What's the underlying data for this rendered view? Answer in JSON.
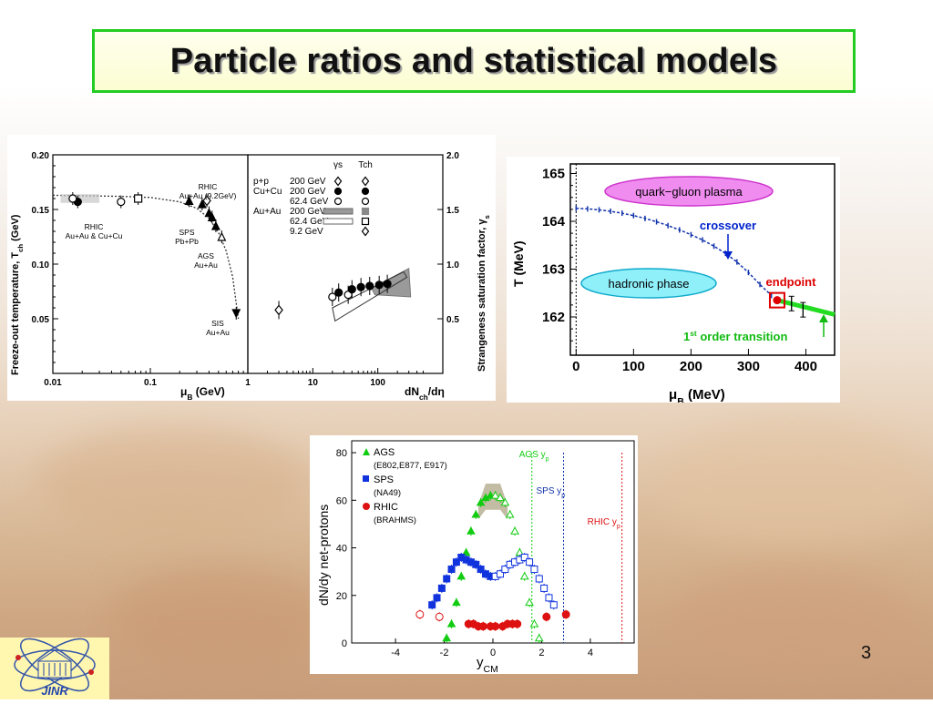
{
  "slide": {
    "title": "Particle ratios and  statistical models",
    "page_number": "3",
    "logo_text": "JINR",
    "colors": {
      "title_border": "#22cc22",
      "title_bg": "#fbfdd2"
    }
  },
  "chart_data": [
    {
      "id": "freeze-out",
      "type": "scatter",
      "left": {
        "ylabel": "Freeze-out temperature, T",
        "ylabel_sub": "ch",
        "ylabel_unit": "(GeV)",
        "xlabel": "μ",
        "xlabel_sub": "B",
        "xlabel_unit": "(GeV)",
        "xscale": "log",
        "xlim": [
          0.01,
          1
        ],
        "ylim": [
          0,
          0.2
        ],
        "xticks": [
          "0.01",
          "0.1",
          "1"
        ],
        "yticks": [
          "0.05",
          "0.10",
          "0.15",
          "0.20"
        ],
        "annotations": [
          {
            "lines": [
              "RHIC",
              "Au+Au & Cu+Cu"
            ]
          },
          {
            "lines": [
              "RHIC",
              "Au+Au (9.2GeV)"
            ]
          },
          {
            "lines": [
              "SPS",
              "Pb+Pb"
            ]
          },
          {
            "lines": [
              "AGS",
              "Au+Au"
            ]
          },
          {
            "lines": [
              "SIS",
              "Au+Au"
            ]
          }
        ],
        "curve": {
          "x": [
            0.01,
            0.05,
            0.1,
            0.2,
            0.3,
            0.4,
            0.5,
            0.6,
            0.7,
            0.8
          ],
          "y": [
            0.163,
            0.162,
            0.161,
            0.157,
            0.151,
            0.142,
            0.129,
            0.112,
            0.088,
            0.05
          ]
        },
        "points": [
          {
            "x": 0.018,
            "y": 0.157,
            "marker": "filled-circle"
          },
          {
            "x": 0.016,
            "y": 0.16,
            "marker": "open-circle"
          },
          {
            "x": 0.05,
            "y": 0.157,
            "marker": "open-circle"
          },
          {
            "x": 0.075,
            "y": 0.16,
            "marker": "open-square"
          },
          {
            "x": 0.25,
            "y": 0.158,
            "marker": "filled-triangle"
          },
          {
            "x": 0.34,
            "y": 0.155,
            "marker": "filled-triangle"
          },
          {
            "x": 0.38,
            "y": 0.158,
            "marker": "open-diamond"
          },
          {
            "x": 0.4,
            "y": 0.147,
            "marker": "filled-triangle"
          },
          {
            "x": 0.43,
            "y": 0.143,
            "marker": "filled-triangle"
          },
          {
            "x": 0.47,
            "y": 0.135,
            "marker": "filled-triangle"
          },
          {
            "x": 0.54,
            "y": 0.125,
            "marker": "open-triangle"
          },
          {
            "x": 0.76,
            "y": 0.055,
            "marker": "filled-triangle-down"
          }
        ]
      },
      "right": {
        "xlabel": "dN",
        "xlabel_sub": "ch",
        "xlabel_unit": "/dη",
        "ylabel": "Strangeness saturation factor, γ",
        "ylabel_sub": "s",
        "xscale": "log",
        "xlim": [
          1,
          1000
        ],
        "ylim": [
          0,
          2.0
        ],
        "xticks": [
          "10",
          "100"
        ],
        "yticks": [
          "0.5",
          "1.0",
          "1.5",
          "2.0"
        ],
        "legend_columns": [
          "γs",
          "Tch"
        ],
        "legend": [
          {
            "system": "p+p",
            "energy": "200 GeV",
            "gamma": "open-diamond",
            "tch": "open-diamond"
          },
          {
            "system": "Cu+Cu",
            "energy": "200 GeV",
            "gamma": "filled-circle",
            "tch": "filled-circle"
          },
          {
            "system": "",
            "energy": "62.4 GeV",
            "gamma": "open-circle",
            "tch": "open-circle"
          },
          {
            "system": "Au+Au",
            "energy": "200 GeV",
            "gamma": "gray-band",
            "tch": "gray-square"
          },
          {
            "system": "",
            "energy": "62.4 GeV",
            "gamma": "open-band",
            "tch": "open-square"
          },
          {
            "system": "",
            "energy": "9.2 GeV",
            "gamma": "",
            "tch": "open-diamond"
          }
        ],
        "points": [
          {
            "x": 3,
            "y": 0.58,
            "marker": "open-diamond"
          },
          {
            "x": 20,
            "y": 0.7,
            "marker": "open-circle"
          },
          {
            "x": 25,
            "y": 0.74,
            "marker": "filled-circle"
          },
          {
            "x": 35,
            "y": 0.72,
            "marker": "open-circle"
          },
          {
            "x": 40,
            "y": 0.77,
            "marker": "filled-circle"
          },
          {
            "x": 55,
            "y": 0.79,
            "marker": "filled-circle"
          },
          {
            "x": 75,
            "y": 0.8,
            "marker": "filled-circle"
          },
          {
            "x": 105,
            "y": 0.81,
            "marker": "filled-circle"
          },
          {
            "x": 140,
            "y": 0.82,
            "marker": "filled-circle"
          }
        ]
      }
    },
    {
      "id": "phase-diagram",
      "type": "line",
      "xlabel": "μ",
      "xlabel_sub": "B",
      "xlabel_unit": "(MeV)",
      "ylabel": "T (MeV)",
      "xlim": [
        -10,
        450
      ],
      "ylim": [
        161.2,
        165.2
      ],
      "xticks": [
        0,
        100,
        200,
        300,
        400
      ],
      "yticks": [
        162,
        163,
        164,
        165
      ],
      "regions": [
        {
          "label": "quark−gluon plasma",
          "color": "#e060e0"
        },
        {
          "label": "hadronic phase",
          "color": "#40d0e8"
        }
      ],
      "annotations": [
        {
          "label": "crossover",
          "color": "#0022cc"
        },
        {
          "label": "endpoint",
          "color": "#dd0000"
        },
        {
          "label": "1st order transition",
          "color": "#11bb11"
        }
      ],
      "crossover": {
        "x": [
          0,
          20,
          40,
          60,
          80,
          100,
          120,
          140,
          160,
          180,
          200,
          220,
          240,
          260,
          280,
          300,
          320,
          340
        ],
        "y": [
          164.27,
          164.26,
          164.24,
          164.21,
          164.17,
          164.12,
          164.06,
          163.99,
          163.91,
          163.82,
          163.72,
          163.61,
          163.48,
          163.33,
          163.15,
          162.93,
          162.68,
          162.45
        ]
      },
      "endpoint": {
        "x": 350,
        "y": 162.35
      },
      "first_order": {
        "x": [
          350,
          400,
          450
        ],
        "y": [
          162.35,
          162.2,
          162.05
        ]
      },
      "first_order_points": [
        {
          "x": 375,
          "y": 162.28
        },
        {
          "x": 395,
          "y": 162.15
        }
      ]
    },
    {
      "id": "net-protons",
      "type": "scatter",
      "xlabel": "y",
      "xlabel_sub": "CM",
      "ylabel": "dN/dy net-protons",
      "xlim": [
        -5.8,
        5.8
      ],
      "ylim": [
        0,
        85
      ],
      "xticks": [
        -4,
        -2,
        0,
        2,
        4
      ],
      "yticks": [
        0,
        20,
        40,
        60,
        80
      ],
      "series": [
        {
          "name": "AGS",
          "sub": "(E802,E877, E917)",
          "color": "#11cc11",
          "marker": "triangle",
          "x": [
            -1.9,
            -1.7,
            -1.5,
            -1.3,
            -1.1,
            -0.9,
            -0.7,
            -0.5,
            -0.3,
            -0.1,
            0.1,
            0.3,
            0.5,
            0.7,
            0.9,
            1.1,
            1.3,
            1.5,
            1.7,
            1.9
          ],
          "y": [
            2,
            8,
            17,
            28,
            38,
            47,
            54,
            59,
            61,
            62,
            62,
            61,
            59,
            54,
            47,
            38,
            28,
            17,
            8,
            2
          ]
        },
        {
          "name": "SPS",
          "sub": "(NA49)",
          "color": "#1133dd",
          "marker": "square",
          "x": [
            -2.5,
            -2.3,
            -2.1,
            -1.9,
            -1.7,
            -1.5,
            -1.3,
            -1.1,
            -0.9,
            -0.7,
            -0.5,
            -0.3,
            -0.1,
            0.1,
            0.3,
            0.5,
            0.7,
            0.9,
            1.1,
            1.3,
            1.5,
            1.7,
            1.9,
            2.1,
            2.3,
            2.5
          ],
          "y": [
            16,
            19,
            23,
            27,
            31,
            34,
            36,
            35,
            34,
            33,
            31,
            29,
            28,
            28,
            29,
            31,
            33,
            34,
            35,
            36,
            34,
            31,
            27,
            23,
            19,
            16
          ]
        },
        {
          "name": "RHIC",
          "sub": "(BRAHMS)",
          "color": "#dd1111",
          "marker": "circle",
          "x": [
            -3.0,
            -2.2,
            -1.0,
            -0.8,
            -0.6,
            -0.4,
            -0.1,
            0.1,
            0.4,
            0.6,
            0.8,
            1.0,
            2.2,
            3.0
          ],
          "y": [
            12,
            11,
            8,
            8,
            7,
            7,
            7,
            7,
            7,
            8,
            8,
            8,
            11,
            12
          ]
        }
      ],
      "markers": [
        {
          "label": "AGS y",
          "sub": "p",
          "x": 1.6,
          "color": "#11cc11"
        },
        {
          "label": "SPS y",
          "sub": "p",
          "x": 2.9,
          "color": "#1133aa"
        },
        {
          "label": "RHIC y",
          "sub": "p",
          "x": 5.3,
          "color": "#dd1111"
        }
      ]
    }
  ]
}
